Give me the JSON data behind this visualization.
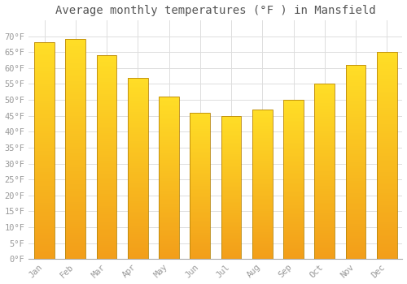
{
  "title": "Average monthly temperatures (°F ) in Mansfield",
  "months": [
    "Jan",
    "Feb",
    "Mar",
    "Apr",
    "May",
    "Jun",
    "Jul",
    "Aug",
    "Sep",
    "Oct",
    "Nov",
    "Dec"
  ],
  "values": [
    68,
    69,
    64,
    57,
    51,
    46,
    45,
    47,
    50,
    55,
    61,
    65
  ],
  "bar_color_bottom": "#F5A623",
  "bar_color_top": "#FFD966",
  "bar_edge_color": "#B8860B",
  "background_color": "#FFFFFF",
  "plot_bg_color": "#FFFFFF",
  "grid_color": "#DDDDDD",
  "ylim": [
    0,
    75
  ],
  "yticks": [
    0,
    5,
    10,
    15,
    20,
    25,
    30,
    35,
    40,
    45,
    50,
    55,
    60,
    65,
    70
  ],
  "title_fontsize": 10,
  "tick_fontsize": 7.5,
  "tick_color": "#999999",
  "title_color": "#555555",
  "font_family": "monospace",
  "bar_width": 0.65
}
